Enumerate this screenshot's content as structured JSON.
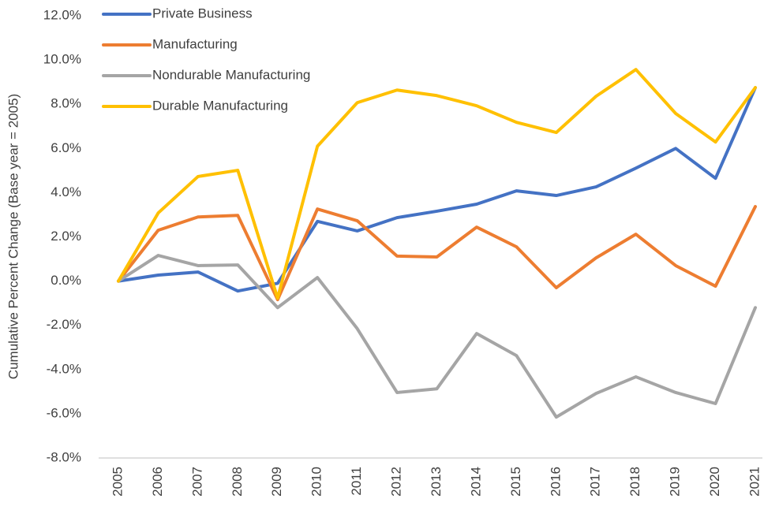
{
  "chart_data": {
    "type": "line",
    "y_label": "Cumulative Percent Change (Base year = 2005)",
    "categories": [
      "2005",
      "2006",
      "2007",
      "2008",
      "2009",
      "2010",
      "2011",
      "2012",
      "2013",
      "2014",
      "2015",
      "2016",
      "2017",
      "2018",
      "2019",
      "2020",
      "2021"
    ],
    "series": [
      {
        "name": "Private Business",
        "color": "#4472c4",
        "values": [
          0,
          0.27,
          0.41,
          -0.45,
          -0.1,
          2.7,
          2.27,
          2.87,
          3.16,
          3.48,
          4.08,
          3.87,
          4.26,
          5.11,
          6.0,
          4.65,
          8.75
        ]
      },
      {
        "name": "Manufacturing",
        "color": "#ed7d31",
        "values": [
          0,
          2.3,
          2.9,
          2.97,
          -0.84,
          3.26,
          2.73,
          1.13,
          1.09,
          2.44,
          1.55,
          -0.3,
          1.05,
          2.12,
          0.7,
          -0.23,
          3.37
        ]
      },
      {
        "name": "Nondurable Manufacturing",
        "color": "#a5a5a5",
        "values": [
          0,
          1.16,
          0.7,
          0.73,
          -1.2,
          0.16,
          -2.15,
          -5.04,
          -4.87,
          -2.37,
          -3.37,
          -6.15,
          -5.08,
          -4.33,
          -5.04,
          -5.54,
          -1.2
        ]
      },
      {
        "name": "Durable Manufacturing",
        "color": "#ffc000",
        "values": [
          0,
          3.08,
          4.73,
          5.01,
          -0.77,
          6.1,
          8.07,
          8.64,
          8.39,
          7.93,
          7.18,
          6.72,
          8.36,
          9.57,
          7.58,
          6.29,
          8.75
        ]
      }
    ],
    "ylim": [
      -8,
      12
    ],
    "yticks": [
      {
        "value": -8,
        "label": "-8.0%"
      },
      {
        "value": -6,
        "label": "-6.0%"
      },
      {
        "value": -4,
        "label": "-4.0%"
      },
      {
        "value": -2,
        "label": "-2.0%"
      },
      {
        "value": 0,
        "label": "0.0%"
      },
      {
        "value": 2,
        "label": "2.0%"
      },
      {
        "value": 4,
        "label": "4.0%"
      },
      {
        "value": 6,
        "label": "6.0%"
      },
      {
        "value": 8,
        "label": "8.0%"
      },
      {
        "value": 10,
        "label": "10.0%"
      },
      {
        "value": 12,
        "label": "12.0%"
      }
    ],
    "grid": false,
    "legend": "top-left"
  }
}
